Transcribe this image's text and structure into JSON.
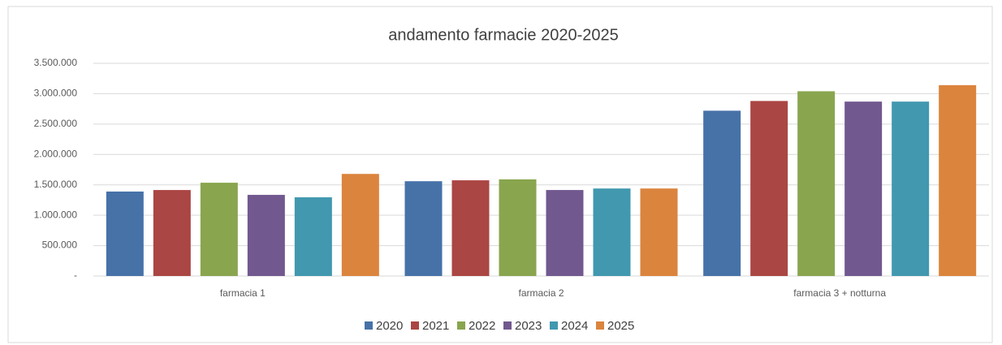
{
  "chart_data": {
    "type": "bar",
    "title": "andamento farmacie 2020-2025",
    "categories": [
      "farmacia 1",
      "farmacia 2",
      "farmacia 3 + notturna"
    ],
    "series": [
      {
        "name": "2020",
        "color": "#4672a8",
        "values": [
          1390000,
          1560000,
          2720000
        ]
      },
      {
        "name": "2021",
        "color": "#aa4643",
        "values": [
          1415000,
          1575000,
          2880000
        ]
      },
      {
        "name": "2022",
        "color": "#89a54e",
        "values": [
          1535000,
          1590000,
          3040000
        ]
      },
      {
        "name": "2023",
        "color": "#71588f",
        "values": [
          1335000,
          1415000,
          2870000
        ]
      },
      {
        "name": "2024",
        "color": "#4198af",
        "values": [
          1295000,
          1440000,
          2870000
        ]
      },
      {
        "name": "2025",
        "color": "#db843d",
        "values": [
          1680000,
          1440000,
          3140000
        ]
      }
    ],
    "ylim": [
      0,
      3500000
    ],
    "yticks": [
      {
        "value": 0,
        "label": "-"
      },
      {
        "value": 500000,
        "label": "500.000"
      },
      {
        "value": 1000000,
        "label": "1.000.000"
      },
      {
        "value": 1500000,
        "label": "1.500.000"
      },
      {
        "value": 2000000,
        "label": "2.000.000"
      },
      {
        "value": 2500000,
        "label": "2.500.000"
      },
      {
        "value": 3000000,
        "label": "3.000.000"
      },
      {
        "value": 3500000,
        "label": "3.500.000"
      }
    ],
    "grid": true,
    "legend": "bottom"
  }
}
